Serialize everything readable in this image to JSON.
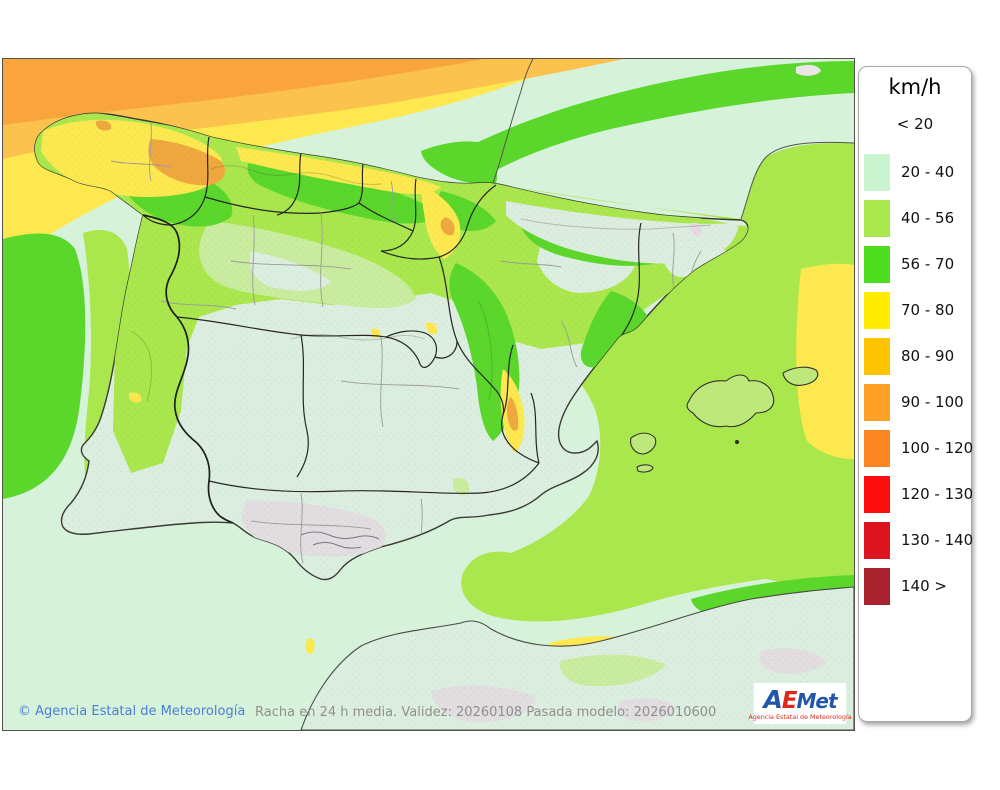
{
  "legend": {
    "title": "km/h",
    "first_label": "< 20",
    "items": [
      {
        "label": "20 - 40",
        "color": "#c9f4cf"
      },
      {
        "label": "40 - 56",
        "color": "#a9e74d"
      },
      {
        "label": "56 - 70",
        "color": "#4fdd20"
      },
      {
        "label": "70 - 80",
        "color": "#ffec00"
      },
      {
        "label": "80 - 90",
        "color": "#ffc400"
      },
      {
        "label": "90 - 100",
        "color": "#ffa125"
      },
      {
        "label": "100 - 120",
        "color": "#fb8622"
      },
      {
        "label": "120 - 130",
        "color": "#fb0d0d"
      },
      {
        "label": "130 - 140",
        "color": "#dc141f"
      },
      {
        "label": "140 >",
        "color": "#a8232e"
      }
    ]
  },
  "footer": {
    "copyright": "© Agencia Estatal de Meteorología",
    "copyright_color": "#4a7fd6",
    "model_info": "Racha en 24 h media. Validez: 20260108 Pasada modelo: 2026010600",
    "model_info_color": "#8f8f8f"
  },
  "logo": {
    "part_a": "A",
    "part_e": "E",
    "part_met": "Met",
    "subtitle": "Agencia Estatal de Meteorología",
    "blue": "#2356a8",
    "red": "#dd2a1b"
  },
  "map_palette": {
    "sea_mint": "#d7f2da",
    "land_mint": "#dceee0",
    "pale_green": "#c9ec9e",
    "yellow_green": "#a9e74d",
    "green": "#5bd72c",
    "yellow": "#fde94f",
    "orange_light": "#fcc24e",
    "orange_deep": "#f9a43c",
    "orange_land": "#efa83e",
    "terrain_gray": "#e1dde1",
    "gray_pink": "#e6d9e4",
    "coast_dark": "#3a3a32",
    "border_black": "#262626",
    "border_gray": "#9b9b9b"
  }
}
